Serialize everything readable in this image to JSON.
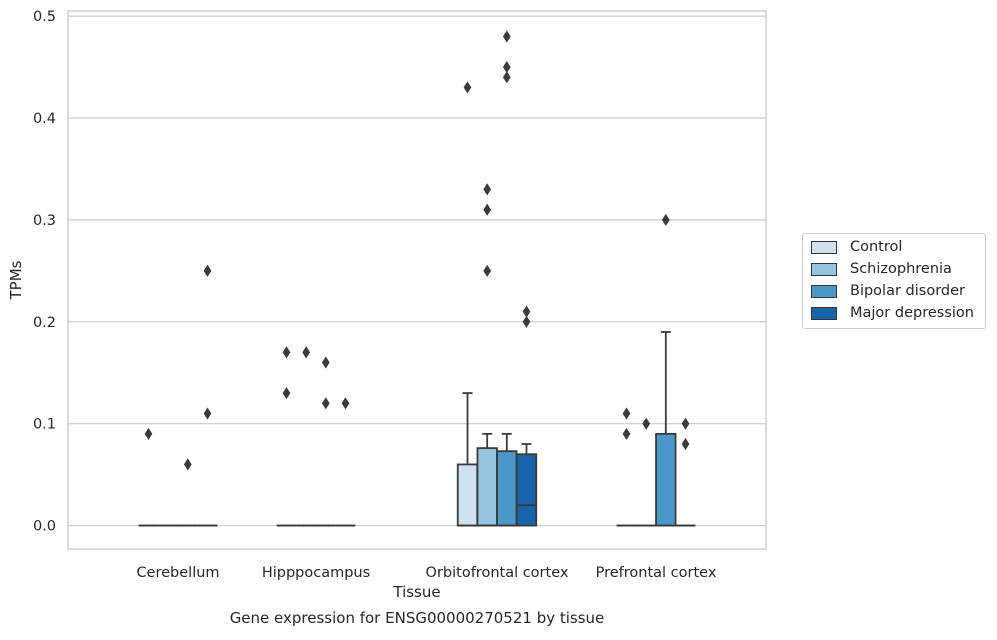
{
  "chart_data": {
    "type": "box",
    "title": "Gene expression for ENSG00000270521 by tissue",
    "xlabel": "Tissue",
    "ylabel": "TPMs",
    "categories": [
      "Cerebellum",
      "Hipppocampus",
      "Orbitofrontal cortex",
      "Prefrontal cortex"
    ],
    "ylim": [
      -0.023,
      0.505
    ],
    "yticks": [
      "0.0",
      "0.1",
      "0.2",
      "0.3",
      "0.4",
      "0.5"
    ],
    "ytick_values": [
      0.0,
      0.1,
      0.2,
      0.3,
      0.4,
      0.5
    ],
    "grid": "horizontal",
    "legend_position": "outside-right",
    "series": [
      {
        "name": "Control",
        "color": "#d0e1f2",
        "boxes": [
          {
            "category": "Cerebellum",
            "q1": 0,
            "median": 0,
            "q3": 0,
            "whisker_low": 0,
            "whisker_high": 0,
            "outliers": [
              0.09
            ]
          },
          {
            "category": "Hipppocampus",
            "q1": 0,
            "median": 0,
            "q3": 0,
            "whisker_low": 0,
            "whisker_high": 0,
            "outliers": [
              0.17,
              0.13
            ]
          },
          {
            "category": "Orbitofrontal cortex",
            "q1": 0,
            "median": 0,
            "q3": 0.06,
            "whisker_low": 0,
            "whisker_high": 0.13,
            "outliers": [
              0.43
            ]
          },
          {
            "category": "Prefrontal cortex",
            "q1": 0,
            "median": 0,
            "q3": 0,
            "whisker_low": 0,
            "whisker_high": 0,
            "outliers": [
              0.11,
              0.09
            ]
          }
        ]
      },
      {
        "name": "Schizophrenia",
        "color": "#94c4df",
        "boxes": [
          {
            "category": "Cerebellum",
            "q1": 0,
            "median": 0,
            "q3": 0,
            "whisker_low": 0,
            "whisker_high": 0,
            "outliers": []
          },
          {
            "category": "Hipppocampus",
            "q1": 0,
            "median": 0,
            "q3": 0,
            "whisker_low": 0,
            "whisker_high": 0,
            "outliers": [
              0.17
            ]
          },
          {
            "category": "Orbitofrontal cortex",
            "q1": 0,
            "median": 0,
            "q3": 0.076,
            "whisker_low": 0,
            "whisker_high": 0.09,
            "outliers": [
              0.33,
              0.31,
              0.25
            ]
          },
          {
            "category": "Prefrontal cortex",
            "q1": 0,
            "median": 0,
            "q3": 0,
            "whisker_low": 0,
            "whisker_high": 0,
            "outliers": [
              0.1
            ]
          }
        ]
      },
      {
        "name": "Bipolar disorder",
        "color": "#4a98c9",
        "boxes": [
          {
            "category": "Cerebellum",
            "q1": 0,
            "median": 0,
            "q3": 0,
            "whisker_low": 0,
            "whisker_high": 0,
            "outliers": [
              0.06
            ]
          },
          {
            "category": "Hipppocampus",
            "q1": 0,
            "median": 0,
            "q3": 0,
            "whisker_low": 0,
            "whisker_high": 0,
            "outliers": [
              0.16,
              0.12
            ]
          },
          {
            "category": "Orbitofrontal cortex",
            "q1": 0,
            "median": 0,
            "q3": 0.073,
            "whisker_low": 0,
            "whisker_high": 0.09,
            "outliers": [
              0.48,
              0.45,
              0.44
            ]
          },
          {
            "category": "Prefrontal cortex",
            "q1": 0,
            "median": 0,
            "q3": 0.09,
            "whisker_low": 0,
            "whisker_high": 0.19,
            "outliers": [
              0.3
            ]
          }
        ]
      },
      {
        "name": "Major depression",
        "color": "#1764ab",
        "boxes": [
          {
            "category": "Cerebellum",
            "q1": 0,
            "median": 0,
            "q3": 0,
            "whisker_low": 0,
            "whisker_high": 0,
            "outliers": [
              0.25,
              0.11
            ]
          },
          {
            "category": "Hipppocampus",
            "q1": 0,
            "median": 0,
            "q3": 0,
            "whisker_low": 0,
            "whisker_high": 0,
            "outliers": [
              0.12
            ]
          },
          {
            "category": "Orbitofrontal cortex",
            "q1": 0,
            "median": 0.02,
            "q3": 0.07,
            "whisker_low": 0,
            "whisker_high": 0.08,
            "outliers": [
              0.21,
              0.2
            ]
          },
          {
            "category": "Prefrontal cortex",
            "q1": 0,
            "median": 0,
            "q3": 0,
            "whisker_low": 0,
            "whisker_high": 0,
            "outliers": [
              0.1,
              0.08
            ]
          }
        ]
      }
    ]
  }
}
